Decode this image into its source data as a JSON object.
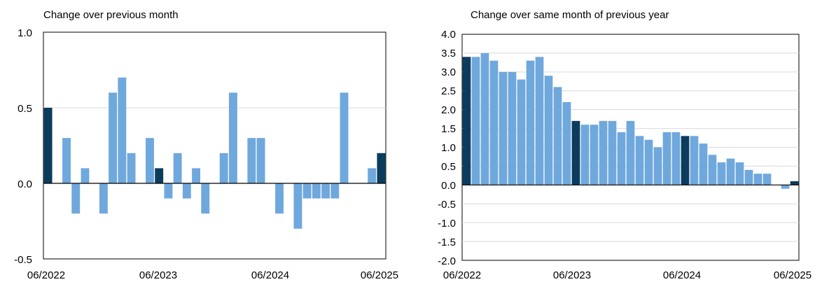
{
  "colors": {
    "light": "#6fa8dc",
    "dark": "#0b3c5d",
    "grid": "#d9d9d9",
    "axis": "#000000"
  },
  "chart_data": [
    {
      "type": "bar",
      "title": "Change over previous month",
      "xlabel": "",
      "ylabel": "",
      "ylim": [
        -0.5,
        1.0
      ],
      "yticks": [
        "-0.5",
        "0.0",
        "0.5",
        "1.0"
      ],
      "xtick_labels": [
        "06/2022",
        "06/2023",
        "06/2024",
        "06/2025"
      ],
      "grid": true,
      "values": [
        0.5,
        0,
        0.3,
        -0.2,
        0.1,
        0,
        -0.2,
        0.6,
        0.7,
        0.2,
        0,
        0.3,
        0.1,
        -0.1,
        0.2,
        -0.1,
        0.1,
        -0.2,
        0,
        0.2,
        0.6,
        0,
        0.3,
        0.3,
        0,
        -0.2,
        0,
        -0.3,
        -0.1,
        -0.1,
        -0.1,
        -0.1,
        0.6,
        0,
        0,
        0.1,
        0.2
      ],
      "highlight_indices": [
        0,
        12,
        24,
        36
      ]
    },
    {
      "type": "bar",
      "title": "Change over same month of previous year",
      "xlabel": "",
      "ylabel": "",
      "ylim": [
        -2.0,
        4.0
      ],
      "yticks": [
        "-2.0",
        "-1.5",
        "-1.0",
        "-0.5",
        "0.0",
        "0.5",
        "1.0",
        "1.5",
        "2.0",
        "2.5",
        "3.0",
        "3.5",
        "4.0"
      ],
      "xtick_labels": [
        "06/2022",
        "06/2023",
        "06/2024",
        "06/2025"
      ],
      "grid": true,
      "values": [
        3.4,
        3.4,
        3.5,
        3.3,
        3.0,
        3.0,
        2.8,
        3.3,
        3.4,
        2.9,
        2.6,
        2.2,
        1.7,
        1.6,
        1.6,
        1.7,
        1.7,
        1.4,
        1.7,
        1.3,
        1.2,
        1.0,
        1.4,
        1.4,
        1.3,
        1.3,
        1.1,
        0.8,
        0.6,
        0.7,
        0.6,
        0.4,
        0.3,
        0.3,
        0.0,
        -0.1,
        0.1
      ],
      "highlight_indices": [
        0,
        12,
        24,
        36
      ]
    }
  ]
}
